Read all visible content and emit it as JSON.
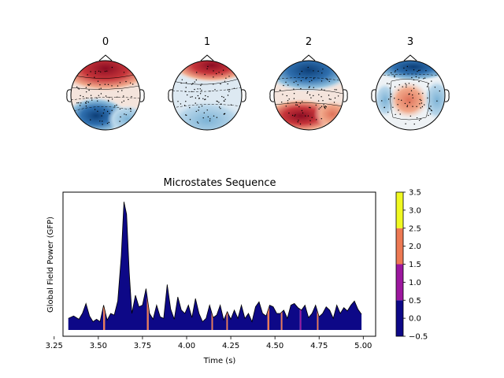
{
  "topomaps": {
    "panels": [
      {
        "label": "0",
        "pattern": "anterior-positive"
      },
      {
        "label": "1",
        "pattern": "anterior-positive"
      },
      {
        "label": "2",
        "pattern": "anterior-negative"
      },
      {
        "label": "3",
        "pattern": "central-positive"
      }
    ],
    "colormap": "RdBu_r"
  },
  "chart_data": {
    "type": "area",
    "title": "Microstates Sequence",
    "xlabel": "Time (s)",
    "ylabel": "Global Field Power (GFP)",
    "xlim": [
      3.3,
      5.07
    ],
    "xticks": [
      "3.25",
      "3.50",
      "3.75",
      "4.00",
      "4.25",
      "4.50",
      "4.75",
      "5.00"
    ],
    "grid": false,
    "series": [
      {
        "x": [
          3.33,
          3.36,
          3.39,
          3.41,
          3.43,
          3.45,
          3.47,
          3.49,
          3.51,
          3.53,
          3.55,
          3.57,
          3.59,
          3.61,
          3.63,
          3.645,
          3.66,
          3.675,
          3.69,
          3.71,
          3.73,
          3.75,
          3.77,
          3.79,
          3.81,
          3.83,
          3.85,
          3.87,
          3.89,
          3.91,
          3.93,
          3.95,
          3.97,
          3.99,
          4.01,
          4.03,
          4.05,
          4.07,
          4.09,
          4.11,
          4.13,
          4.15,
          4.17,
          4.19,
          4.21,
          4.23,
          4.25,
          4.27,
          4.29,
          4.31,
          4.33,
          4.35,
          4.37,
          4.39,
          4.41,
          4.43,
          4.45,
          4.47,
          4.49,
          4.51,
          4.53,
          4.55,
          4.57,
          4.59,
          4.61,
          4.63,
          4.65,
          4.67,
          4.69,
          4.71,
          4.73,
          4.75,
          4.77,
          4.79,
          4.81,
          4.83,
          4.85,
          4.87,
          4.89,
          4.91,
          4.93,
          4.95,
          4.97,
          4.99
        ],
        "y": [
          0.14,
          0.17,
          0.13,
          0.2,
          0.32,
          0.17,
          0.1,
          0.13,
          0.1,
          0.3,
          0.12,
          0.2,
          0.18,
          0.35,
          0.9,
          1.55,
          1.4,
          0.7,
          0.2,
          0.42,
          0.28,
          0.3,
          0.5,
          0.2,
          0.13,
          0.3,
          0.16,
          0.14,
          0.55,
          0.25,
          0.13,
          0.4,
          0.24,
          0.2,
          0.3,
          0.15,
          0.38,
          0.2,
          0.1,
          0.14,
          0.3,
          0.15,
          0.18,
          0.3,
          0.12,
          0.22,
          0.13,
          0.24,
          0.14,
          0.3,
          0.14,
          0.2,
          0.1,
          0.28,
          0.34,
          0.2,
          0.17,
          0.3,
          0.28,
          0.2,
          0.2,
          0.24,
          0.14,
          0.3,
          0.32,
          0.27,
          0.24,
          0.3,
          0.15,
          0.2,
          0.3,
          0.16,
          0.2,
          0.28,
          0.24,
          0.14,
          0.3,
          0.2,
          0.27,
          0.23,
          0.3,
          0.35,
          0.25,
          0.19
        ]
      }
    ],
    "state_segments": [
      {
        "start": 3.33,
        "end": 3.528,
        "state": 0
      },
      {
        "start": 3.528,
        "end": 3.538,
        "state": 2
      },
      {
        "start": 3.538,
        "end": 3.775,
        "state": 0
      },
      {
        "start": 3.775,
        "end": 3.785,
        "state": 2
      },
      {
        "start": 3.785,
        "end": 4.141,
        "state": 0
      },
      {
        "start": 4.141,
        "end": 4.149,
        "state": 2
      },
      {
        "start": 4.149,
        "end": 4.225,
        "state": 0
      },
      {
        "start": 4.225,
        "end": 4.233,
        "state": 2
      },
      {
        "start": 4.233,
        "end": 4.458,
        "state": 0
      },
      {
        "start": 4.458,
        "end": 4.468,
        "state": 2
      },
      {
        "start": 4.468,
        "end": 4.534,
        "state": 0
      },
      {
        "start": 4.534,
        "end": 4.542,
        "state": 2
      },
      {
        "start": 4.542,
        "end": 4.641,
        "state": 0
      },
      {
        "start": 4.641,
        "end": 4.649,
        "state": 1
      },
      {
        "start": 4.649,
        "end": 4.738,
        "state": 0
      },
      {
        "start": 4.738,
        "end": 4.746,
        "state": 2
      },
      {
        "start": 4.746,
        "end": 4.99,
        "state": 0
      }
    ],
    "colorbar": {
      "ticks": [
        "3.5",
        "3.0",
        "2.5",
        "2.0",
        "1.5",
        "1.0",
        "0.5",
        "0.0",
        "−0.5"
      ],
      "range": [
        -0.5,
        3.5
      ],
      "bands": [
        {
          "from": -0.5,
          "to": 0.5,
          "color": "#0d0887"
        },
        {
          "from": 0.5,
          "to": 1.5,
          "color": "#9c179e"
        },
        {
          "from": 1.5,
          "to": 2.5,
          "color": "#ed7953"
        },
        {
          "from": 2.5,
          "to": 3.5,
          "color": "#f0f921"
        }
      ]
    },
    "colors": {
      "state_0": "#0d0887",
      "state_1": "#9c179e",
      "state_2": "#ed7953",
      "state_3": "#f0f921",
      "outline": "#000000"
    }
  }
}
